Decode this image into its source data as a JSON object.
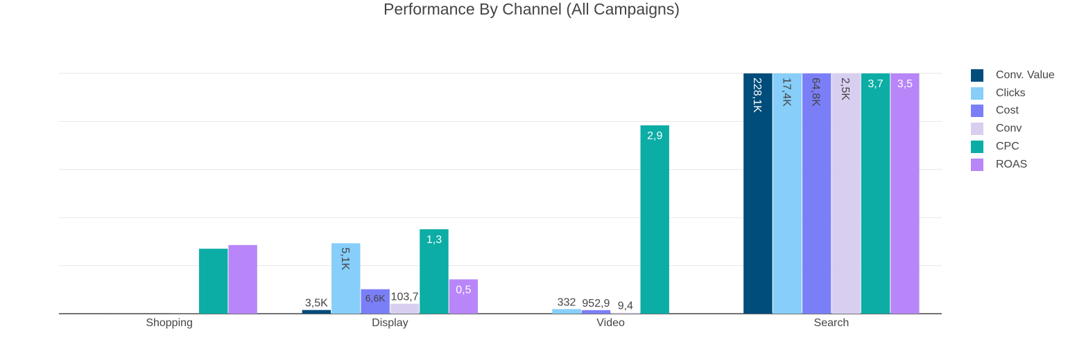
{
  "chart_data": {
    "type": "bar",
    "title": "Performance By Channel (All Campaigns)",
    "categories": [
      "Shopping",
      "Display",
      "Video",
      "Search"
    ],
    "series": [
      {
        "name": "Conv. Value",
        "color": "#004c7a",
        "values": [
          1,
          3500,
          0,
          228100
        ],
        "labels": [
          "",
          "3,5K",
          "",
          "228,1K"
        ]
      },
      {
        "name": "Clicks",
        "color": "#87cefa",
        "values": [
          1,
          5100,
          332,
          17400
        ],
        "labels": [
          "",
          "5,1K",
          "332",
          "17,4K"
        ]
      },
      {
        "name": "Cost",
        "color": "#7b7ff7",
        "values": [
          1,
          6600,
          952.9,
          64800
        ],
        "labels": [
          "",
          "6,6K",
          "952,9",
          "64,8K"
        ]
      },
      {
        "name": "Conv",
        "color": "#d8cff0",
        "values": [
          1,
          103.7,
          9.4,
          2500
        ],
        "labels": [
          "",
          "103,7",
          "9,4",
          "2,5K"
        ]
      },
      {
        "name": "CPC",
        "color": "#0bada5",
        "values": [
          1,
          1.3,
          2.9,
          3.7
        ],
        "labels": [
          "",
          "1,3",
          "2,9",
          "3,7"
        ]
      },
      {
        "name": "ROAS",
        "color": "#b886f8",
        "values": [
          1,
          0.5,
          0,
          3.5
        ],
        "labels": [
          "",
          "0,5",
          "",
          "3,5"
        ]
      }
    ],
    "note": "Bars are normalized per series (each series scaled to its own maximum).",
    "grid": true,
    "legend": "right"
  }
}
